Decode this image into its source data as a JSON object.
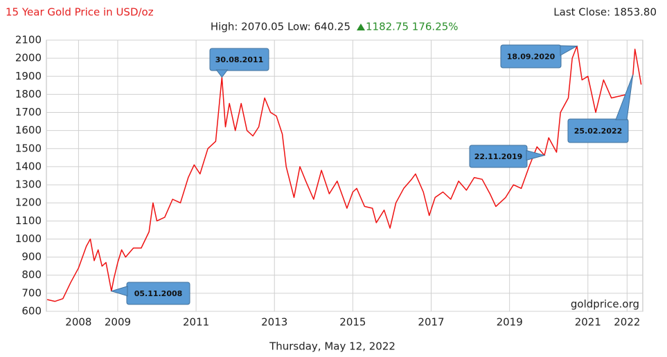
{
  "chart_data": {
    "type": "line",
    "title": "15 Year Gold Price in USD/oz",
    "last_close": "Last Close: 1853.80",
    "stats": "High: 2070.05 Low: 640.25",
    "change": "1182.75 176.25%",
    "source": "goldprice.org",
    "date": "Thursday, May 12, 2022",
    "x": [
      2007.2,
      2007.4,
      2007.6,
      2007.8,
      2008.0,
      2008.2,
      2008.3,
      2008.4,
      2008.5,
      2008.6,
      2008.7,
      2008.84,
      2008.9,
      2009.0,
      2009.1,
      2009.2,
      2009.4,
      2009.6,
      2009.8,
      2009.9,
      2010.0,
      2010.2,
      2010.4,
      2010.6,
      2010.8,
      2010.95,
      2011.1,
      2011.3,
      2011.5,
      2011.66,
      2011.75,
      2011.85,
      2012.0,
      2012.15,
      2012.3,
      2012.45,
      2012.6,
      2012.75,
      2012.9,
      2013.05,
      2013.2,
      2013.3,
      2013.5,
      2013.65,
      2013.8,
      2014.0,
      2014.2,
      2014.4,
      2014.6,
      2014.85,
      2015.0,
      2015.1,
      2015.3,
      2015.5,
      2015.6,
      2015.8,
      2015.95,
      2016.1,
      2016.3,
      2016.5,
      2016.6,
      2016.8,
      2016.95,
      2017.1,
      2017.3,
      2017.5,
      2017.7,
      2017.9,
      2018.1,
      2018.3,
      2018.5,
      2018.65,
      2018.9,
      2019.1,
      2019.3,
      2019.5,
      2019.7,
      2019.89,
      2020.0,
      2020.2,
      2020.3,
      2020.5,
      2020.6,
      2020.72,
      2020.85,
      2021.0,
      2021.2,
      2021.4,
      2021.6,
      2021.8,
      2022.0,
      2022.15,
      2022.2,
      2022.3,
      2022.36
    ],
    "series": [
      {
        "name": "Gold",
        "color": "#ee1111",
        "values": [
          665,
          655,
          670,
          760,
          840,
          960,
          1000,
          880,
          940,
          850,
          870,
          712,
          780,
          870,
          940,
          900,
          950,
          950,
          1040,
          1200,
          1100,
          1120,
          1220,
          1200,
          1340,
          1410,
          1360,
          1500,
          1540,
          1895,
          1620,
          1750,
          1600,
          1750,
          1600,
          1570,
          1620,
          1780,
          1700,
          1680,
          1580,
          1400,
          1230,
          1400,
          1320,
          1220,
          1380,
          1250,
          1320,
          1170,
          1260,
          1280,
          1180,
          1170,
          1090,
          1160,
          1060,
          1200,
          1280,
          1330,
          1360,
          1260,
          1130,
          1230,
          1260,
          1220,
          1320,
          1270,
          1340,
          1330,
          1250,
          1180,
          1230,
          1300,
          1280,
          1400,
          1510,
          1463,
          1560,
          1480,
          1700,
          1780,
          2000,
          2067,
          1880,
          1900,
          1700,
          1880,
          1780,
          1790,
          1800,
          1910,
          2050,
          1930,
          1854
        ]
      }
    ],
    "annotations": [
      {
        "label": "05.11.2008",
        "x": 2008.84,
        "y": 712
      },
      {
        "label": "30.08.2011",
        "x": 2011.66,
        "y": 1895
      },
      {
        "label": "22.11.2019",
        "x": 2019.89,
        "y": 1463
      },
      {
        "label": "18.09.2020",
        "x": 2020.72,
        "y": 2067
      },
      {
        "label": "25.02.2022",
        "x": 2022.15,
        "y": 1910
      }
    ],
    "xlim": [
      2007.18,
      2022.4
    ],
    "xticks": [
      2008,
      2009,
      2011,
      2013,
      2015,
      2017,
      2019,
      2021,
      2022
    ],
    "ylim": [
      600,
      2100
    ],
    "yticks": [
      600,
      700,
      800,
      900,
      1000,
      1100,
      1200,
      1300,
      1400,
      1500,
      1600,
      1700,
      1800,
      1900,
      2000,
      2100
    ],
    "grid": true
  }
}
